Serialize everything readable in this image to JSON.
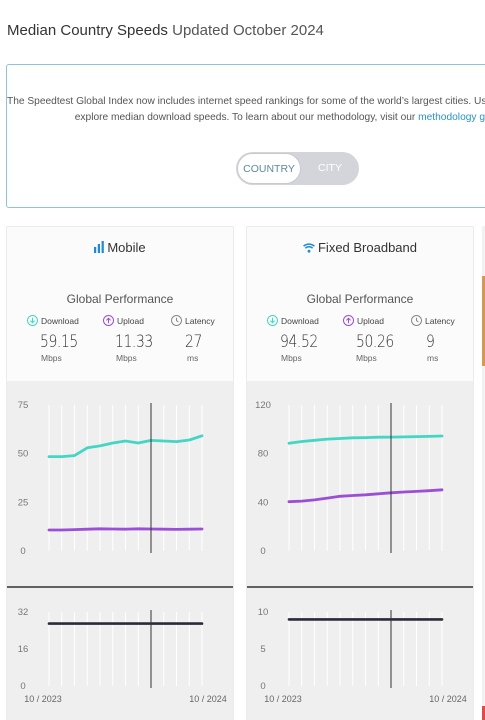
{
  "page": {
    "title_main": "Median Country Speeds",
    "title_updated": "Updated October 2024"
  },
  "intro": {
    "line1": "The Speedtest Global Index now includes internet speed rankings for some of the world’s largest cities. Use",
    "line2_prefix": "explore median download speeds. To learn about our methodology, visit our ",
    "line2_link": "methodology g"
  },
  "toggle": {
    "country_label": "COUNTRY",
    "city_label": "CITY",
    "selected": "COUNTRY"
  },
  "colors": {
    "download": "#44d6c4",
    "upload": "#9b4fd6",
    "latency": "#2a2a3a",
    "latency_icon": "#888888",
    "link": "#2a93c4",
    "accent_blue": "#1d8ad6"
  },
  "cards": [
    {
      "id": "mobile",
      "title": "Mobile",
      "icon": "signal-bars-icon",
      "perf_title": "Global Performance",
      "metrics": [
        {
          "label": "Download",
          "value": "59.15",
          "unit": "Mbps",
          "icon": "download-icon"
        },
        {
          "label": "Upload",
          "value": "11.33",
          "unit": "Mbps",
          "icon": "upload-icon"
        },
        {
          "label": "Latency",
          "value": "27",
          "unit": "ms",
          "icon": "latency-icon"
        }
      ]
    },
    {
      "id": "fixed",
      "title": "Fixed Broadband",
      "icon": "wifi-icon",
      "perf_title": "Global Performance",
      "metrics": [
        {
          "label": "Download",
          "value": "94.52",
          "unit": "Mbps",
          "icon": "download-icon"
        },
        {
          "label": "Upload",
          "value": "50.26",
          "unit": "Mbps",
          "icon": "upload-icon"
        },
        {
          "label": "Latency",
          "value": "9",
          "unit": "ms",
          "icon": "latency-icon"
        }
      ]
    }
  ],
  "chart_data": [
    {
      "type": "line",
      "chart": "mobile-speed",
      "x": [
        "10 / 2023",
        "11 / 2023",
        "12 / 2023",
        "01 / 2024",
        "02 / 2024",
        "03 / 2024",
        "04 / 2024",
        "05 / 2024",
        "06 / 2024",
        "07 / 2024",
        "08 / 2024",
        "09 / 2024",
        "10 / 2024"
      ],
      "ylim": [
        0,
        75
      ],
      "yticks": [
        "75",
        "50",
        "25",
        "0"
      ],
      "hover_index": 8,
      "series": [
        {
          "key": "download",
          "values": [
            48.5,
            48.5,
            49.0,
            53.0,
            54.0,
            55.5,
            56.5,
            55.5,
            56.8,
            56.5,
            56.2,
            57.0,
            59.2
          ]
        },
        {
          "key": "upload",
          "values": [
            10.8,
            10.8,
            11.0,
            11.2,
            11.4,
            11.3,
            11.2,
            11.4,
            11.3,
            11.2,
            11.1,
            11.2,
            11.3
          ]
        }
      ]
    },
    {
      "type": "line",
      "chart": "mobile-latency",
      "x": [
        "10 / 2023",
        "11 / 2023",
        "12 / 2023",
        "01 / 2024",
        "02 / 2024",
        "03 / 2024",
        "04 / 2024",
        "05 / 2024",
        "06 / 2024",
        "07 / 2024",
        "08 / 2024",
        "09 / 2024",
        "10 / 2024"
      ],
      "x_tick_labels": [
        "10 / 2023",
        "10 / 2024"
      ],
      "ylim": [
        0,
        32
      ],
      "yticks": [
        "32",
        "16",
        "0"
      ],
      "hover_index": 8,
      "series": [
        {
          "key": "latency",
          "values": [
            27,
            27,
            27,
            27,
            27,
            27,
            27,
            27,
            27,
            27,
            27,
            27,
            27
          ]
        }
      ]
    },
    {
      "type": "line",
      "chart": "fixed-speed",
      "x": [
        "10 / 2023",
        "11 / 2023",
        "12 / 2023",
        "01 / 2024",
        "02 / 2024",
        "03 / 2024",
        "04 / 2024",
        "05 / 2024",
        "06 / 2024",
        "07 / 2024",
        "08 / 2024",
        "09 / 2024",
        "10 / 2024"
      ],
      "ylim": [
        0,
        120
      ],
      "yticks": [
        "120",
        "80",
        "40",
        "0"
      ],
      "hover_index": 8,
      "series": [
        {
          "key": "download",
          "values": [
            88.5,
            90.0,
            91.0,
            92.0,
            92.5,
            93.0,
            93.2,
            93.5,
            93.6,
            93.8,
            94.0,
            94.2,
            94.5
          ]
        },
        {
          "key": "upload",
          "values": [
            40.5,
            41.0,
            42.0,
            43.5,
            45.0,
            45.6,
            46.2,
            47.0,
            47.8,
            48.5,
            49.0,
            49.6,
            50.3
          ]
        }
      ]
    },
    {
      "type": "line",
      "chart": "fixed-latency",
      "x": [
        "10 / 2023",
        "11 / 2023",
        "12 / 2023",
        "01 / 2024",
        "02 / 2024",
        "03 / 2024",
        "04 / 2024",
        "05 / 2024",
        "06 / 2024",
        "07 / 2024",
        "08 / 2024",
        "09 / 2024",
        "10 / 2024"
      ],
      "x_tick_labels": [
        "10 / 2023",
        "10 / 2024"
      ],
      "ylim": [
        0,
        10
      ],
      "yticks": [
        "10",
        "5",
        "0"
      ],
      "hover_index": 8,
      "series": [
        {
          "key": "latency",
          "values": [
            9,
            9,
            9,
            9,
            9,
            9,
            9,
            9,
            9,
            9,
            9,
            9,
            9
          ]
        }
      ]
    }
  ]
}
